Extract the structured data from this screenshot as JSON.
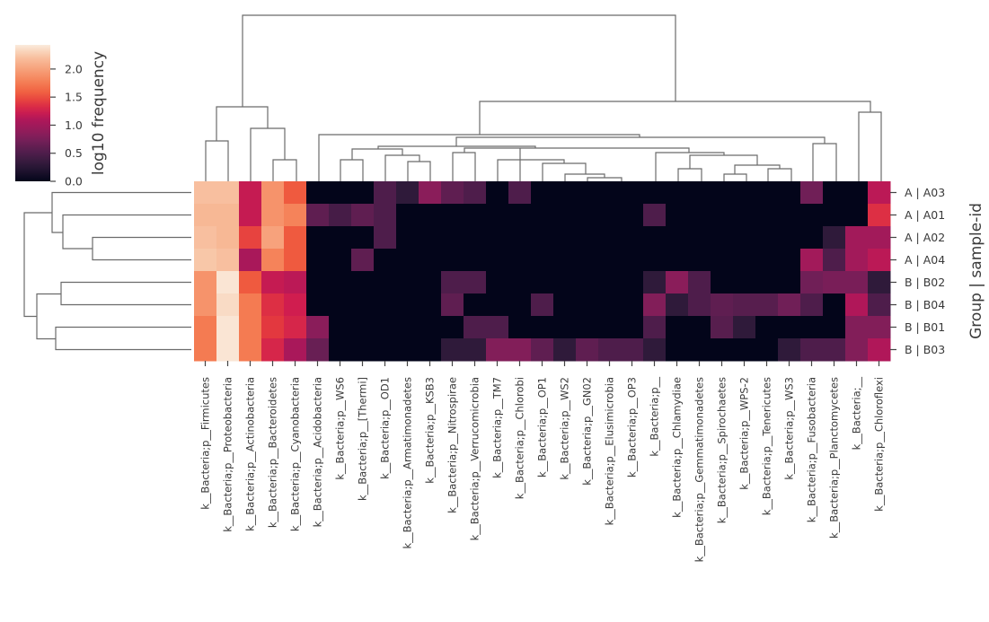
{
  "chart_data": {
    "type": "heatmap",
    "colormap": "rocket",
    "vmin": 0.0,
    "vmax": 2.43,
    "colorbar": {
      "label": "log10 frequency",
      "ticks": [
        "0.0",
        "0.5",
        "1.0",
        "1.5",
        "2.0"
      ],
      "tick_values": [
        0.0,
        0.5,
        1.0,
        1.5,
        2.0
      ]
    },
    "ylabel": "Group | sample-id",
    "rows": [
      "A | A03",
      "A | A01",
      "A | A02",
      "A | A04",
      "B | B02",
      "B | B04",
      "B | B01",
      "B | B03"
    ],
    "columns": [
      "k__Bacteria;p__Firmicutes",
      "k__Bacteria;p__Proteobacteria",
      "k__Bacteria;p__Actinobacteria",
      "k__Bacteria;p__Bacteroidetes",
      "k__Bacteria;p__Cyanobacteria",
      "k__Bacteria;p__Acidobacteria",
      "k__Bacteria;p__WS6",
      "k__Bacteria;p__[Thermi]",
      "k__Bacteria;p__OD1",
      "k__Bacteria;p__Armatimonadetes",
      "k__Bacteria;p__KSB3",
      "k__Bacteria;p__Nitrospirae",
      "k__Bacteria;p__Verrucomicrobia",
      "k__Bacteria;p__TM7",
      "k__Bacteria;p__Chlorobi",
      "k__Bacteria;p__OP1",
      "k__Bacteria;p__WS2",
      "k__Bacteria;p__GN02",
      "k__Bacteria;p__Elusimicrobia",
      "k__Bacteria;p__OP3",
      "k__Bacteria;p__",
      "k__Bacteria;p__Chlamydiae",
      "k__Bacteria;p__Gemmatimonadetes",
      "k__Bacteria;p__Spirochaetes",
      "k__Bacteria;p__WPS-2",
      "k__Bacteria;p__Tenericutes",
      "k__Bacteria;p__WS3",
      "k__Bacteria;p__Fusobacteria",
      "k__Bacteria;p__Planctomycetes",
      "k__Bacteria;__",
      "k__Bacteria;p__Chloroflexi"
    ],
    "values": [
      [
        2.2,
        2.2,
        1.2,
        1.9,
        1.55,
        0,
        0,
        0,
        0.5,
        0.3,
        0.85,
        0.6,
        0.5,
        0,
        0.5,
        0,
        0,
        0,
        0,
        0,
        0,
        0,
        0,
        0,
        0,
        0,
        0,
        0.7,
        0,
        0,
        1.15
      ],
      [
        2.15,
        2.15,
        1.2,
        1.9,
        1.8,
        0.6,
        0.45,
        0.6,
        0.5,
        0,
        0,
        0,
        0,
        0,
        0,
        0,
        0,
        0,
        0,
        0,
        0.5,
        0,
        0,
        0,
        0,
        0,
        0,
        0,
        0,
        0,
        1.35
      ],
      [
        2.2,
        2.15,
        1.45,
        2.0,
        1.55,
        0,
        0,
        0,
        0.5,
        0,
        0,
        0,
        0,
        0,
        0,
        0,
        0,
        0,
        0,
        0,
        0,
        0,
        0,
        0,
        0,
        0,
        0,
        0,
        0.3,
        1.0,
        1.0
      ],
      [
        2.25,
        2.2,
        1.05,
        1.8,
        1.55,
        0,
        0,
        0.6,
        0,
        0,
        0,
        0,
        0,
        0,
        0,
        0,
        0,
        0,
        0,
        0,
        0,
        0,
        0,
        0,
        0,
        0,
        0,
        1.0,
        0.5,
        1.0,
        1.15
      ],
      [
        1.9,
        2.4,
        1.55,
        1.2,
        1.15,
        0,
        0,
        0,
        0,
        0,
        0,
        0.5,
        0.5,
        0,
        0,
        0,
        0,
        0,
        0,
        0,
        0.3,
        0.85,
        0.5,
        0,
        0,
        0,
        0,
        0.7,
        0.75,
        0.75,
        0.3
      ],
      [
        1.9,
        2.35,
        1.75,
        1.35,
        1.25,
        0,
        0,
        0,
        0,
        0,
        0,
        0.6,
        0,
        0,
        0,
        0.5,
        0,
        0,
        0,
        0,
        0.8,
        0.3,
        0.5,
        0.6,
        0.55,
        0.55,
        0.7,
        0.5,
        0,
        1.1,
        0.5
      ],
      [
        1.75,
        2.4,
        1.75,
        1.4,
        1.3,
        0.85,
        0,
        0,
        0,
        0,
        0,
        0,
        0.5,
        0.5,
        0,
        0,
        0,
        0,
        0,
        0,
        0.5,
        0,
        0,
        0.55,
        0.3,
        0,
        0,
        0,
        0,
        0.8,
        0.8
      ],
      [
        1.75,
        2.4,
        1.75,
        1.3,
        1.05,
        0.65,
        0,
        0,
        0,
        0,
        0,
        0.3,
        0.3,
        0.8,
        0.8,
        0.6,
        0.3,
        0.6,
        0.5,
        0.5,
        0.3,
        0,
        0,
        0,
        0,
        0,
        0.3,
        0.5,
        0.5,
        0.8,
        1.1
      ]
    ]
  }
}
